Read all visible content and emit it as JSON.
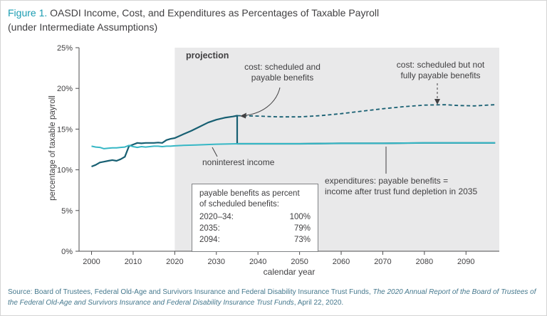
{
  "header": {
    "figure_label": "Figure 1.",
    "title_line1": " OASDI Income, Cost, and Expenditures as Percentages of Taxable Payroll",
    "title_line2": "(under Intermediate Assumptions)"
  },
  "colors": {
    "accent_teal": "#1a9cb2",
    "cost_line": "#175f72",
    "income_line": "#36b7c5",
    "projection_bg": "#e9e9ea",
    "axis": "#4d4d4f",
    "text_dark": "#414042",
    "source_text": "#45788d"
  },
  "chart_data": {
    "type": "line",
    "title": "OASDI Income, Cost, and Expenditures as Percentages of Taxable Payroll (under Intermediate Assumptions)",
    "xlabel": "calendar year",
    "ylabel": "percentage of taxable payroll",
    "xlim": [
      1997,
      2098
    ],
    "ylim": [
      0,
      25
    ],
    "x_ticks": [
      2000,
      2010,
      2020,
      2030,
      2040,
      2050,
      2060,
      2070,
      2080,
      2090
    ],
    "y_ticks": [
      0,
      5,
      10,
      15,
      20,
      25
    ],
    "y_tick_suffix": "%",
    "grid": false,
    "legend_position": "inline-annotations",
    "projection_start_year": 2020,
    "series": [
      {
        "id": "cost-scheduled-payable",
        "name": "cost: scheduled and payable benefits",
        "style": "solid",
        "color": "#175f72",
        "width": 2.2,
        "x": [
          2000,
          2001,
          2002,
          2003,
          2004,
          2005,
          2006,
          2007,
          2008,
          2009,
          2010,
          2011,
          2012,
          2013,
          2014,
          2015,
          2016,
          2017,
          2018,
          2019,
          2020,
          2022,
          2024,
          2026,
          2028,
          2030,
          2032,
          2034,
          2035,
          2035,
          2040,
          2050,
          2060,
          2070,
          2080,
          2090,
          2097
        ],
        "y": [
          10.4,
          10.6,
          10.9,
          11.0,
          11.1,
          11.2,
          11.1,
          11.3,
          11.6,
          12.9,
          13.1,
          13.3,
          13.25,
          13.3,
          13.3,
          13.3,
          13.35,
          13.3,
          13.65,
          13.8,
          13.9,
          14.35,
          14.8,
          15.3,
          15.8,
          16.15,
          16.4,
          16.55,
          16.65,
          13.2,
          13.2,
          13.2,
          13.25,
          13.25,
          13.3,
          13.3,
          13.3
        ]
      },
      {
        "id": "cost-scheduled-not-payable",
        "name": "cost: scheduled but not fully payable benefits",
        "style": "dashed",
        "color": "#175f72",
        "width": 1.8,
        "x": [
          2035,
          2040,
          2045,
          2050,
          2055,
          2060,
          2065,
          2070,
          2075,
          2080,
          2085,
          2088,
          2092,
          2097
        ],
        "y": [
          16.65,
          16.6,
          16.5,
          16.5,
          16.65,
          16.9,
          17.2,
          17.5,
          17.75,
          17.95,
          18.0,
          17.9,
          17.85,
          18.0
        ]
      },
      {
        "id": "noninterest-income",
        "name": "noninterest income",
        "style": "solid",
        "color": "#36b7c5",
        "width": 2,
        "x": [
          2000,
          2001,
          2002,
          2003,
          2004,
          2005,
          2006,
          2007,
          2008,
          2009,
          2010,
          2011,
          2012,
          2013,
          2014,
          2015,
          2016,
          2017,
          2018,
          2019,
          2020,
          2022,
          2025,
          2030,
          2035,
          2040,
          2050,
          2060,
          2070,
          2080,
          2090,
          2097
        ],
        "y": [
          12.9,
          12.8,
          12.75,
          12.6,
          12.65,
          12.7,
          12.7,
          12.75,
          12.8,
          13.0,
          12.85,
          12.75,
          12.85,
          12.8,
          12.85,
          12.9,
          12.9,
          12.85,
          12.9,
          12.9,
          12.95,
          13.0,
          13.05,
          13.15,
          13.2,
          13.2,
          13.2,
          13.25,
          13.25,
          13.3,
          13.3,
          13.3
        ]
      }
    ],
    "annotations": {
      "projection": "projection",
      "cost_scheduled_payable": "cost: scheduled and\npayable benefits",
      "cost_not_fully_payable": "cost: scheduled but not\nfully payable benefits",
      "noninterest_income": "noninterest income",
      "expenditures": "expenditures: payable benefits =\nincome after trust fund depletion in 2035",
      "payable_box": {
        "header": "payable benefits as percent\nof scheduled benefits:",
        "rows": [
          {
            "label": "2020–34:",
            "value": "100%"
          },
          {
            "label": "2035:",
            "value": "79%"
          },
          {
            "label": "2094:",
            "value": "73%"
          }
        ]
      }
    }
  },
  "source": {
    "prefix": "Source: Board of Trustees, Federal Old-Age and Survivors Insurance and Federal Disability Insurance Trust Funds, ",
    "italic_title": "The 2020 Annual Report of the Board of Trustees of the Federal Old-Age and Survivors Insurance and Federal Disability Insurance Trust Funds",
    "suffix": ", April 22, 2020."
  }
}
